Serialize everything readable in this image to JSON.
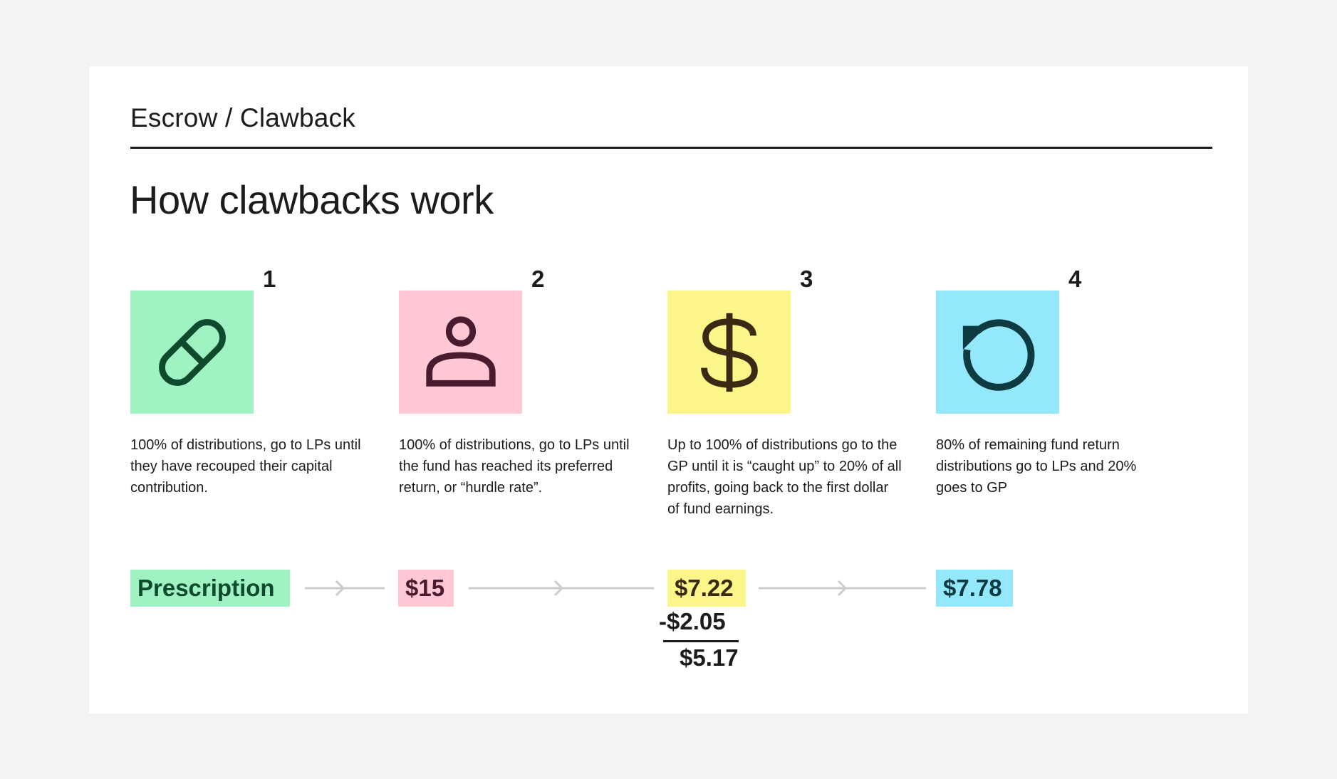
{
  "colors": {
    "page_bg": "#f3f3f1",
    "card_bg": "#ffffff",
    "green": "#9ff2c2",
    "green_ink": "#0e4a2e",
    "pink": "#ffc8d4",
    "pink_ink": "#4a1a2e",
    "yellow": "#fcf68a",
    "yellow_ink": "#3a2a14",
    "blue": "#94e8fb",
    "blue_ink": "#0e3a42",
    "arrow": "#cccccc"
  },
  "header": {
    "breadcrumb": "Escrow / Clawback",
    "title": "How clawbacks work"
  },
  "steps": [
    {
      "number": "1",
      "icon": "pill-icon",
      "description": "100% of distributions, go to LPs until they have recouped their capital contribution."
    },
    {
      "number": "2",
      "icon": "person-icon",
      "description": "100% of distributions, go to LPs until the fund has reached its preferred return, or “hurdle rate”."
    },
    {
      "number": "3",
      "icon": "dollar-icon",
      "description": "Up to 100% of  distributions go to the GP until it is “caught up” to 20% of all profits, going back to the first dollar of fund earnings."
    },
    {
      "number": "4",
      "icon": "refresh-icon",
      "description": "80% of remaining fund return distributions go to LPs and 20% goes to GP"
    }
  ],
  "flow": {
    "start_label": "Prescription",
    "value_2": "$15",
    "value_3": "$7.22",
    "deduction": "-$2.05",
    "result": "$5.17",
    "value_4": "$7.78"
  }
}
